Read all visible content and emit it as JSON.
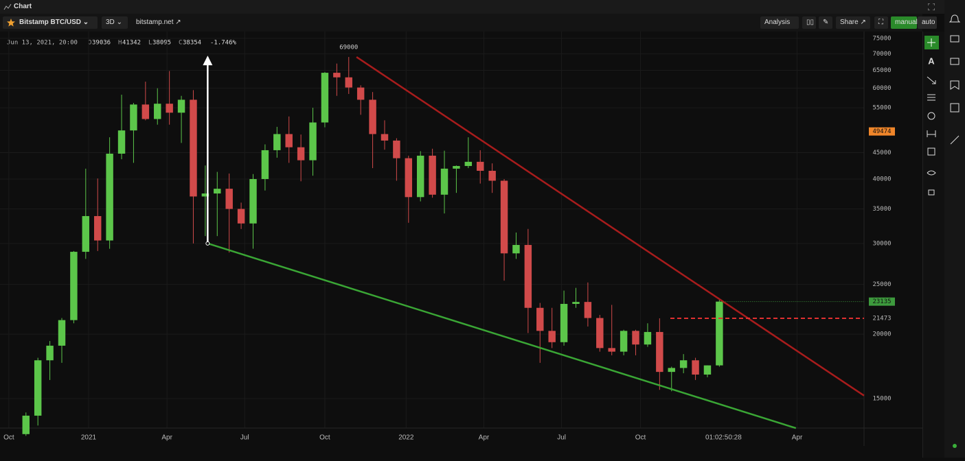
{
  "header": {
    "title": "Chart"
  },
  "toolbar": {
    "symbol": "Bitstamp BTC/USD",
    "interval": "3D",
    "source": "bitstamp.net",
    "analysis": "Analysis",
    "share": "Share",
    "modes": [
      "manual",
      "auto"
    ]
  },
  "legend": {
    "date": "Jun 13, 2021, 20:00",
    "fields": [
      {
        "label": "O",
        "value": 39036
      },
      {
        "label": "H",
        "value": 41342
      },
      {
        "label": "L",
        "value": 38095
      },
      {
        "label": "C",
        "value": 38354
      }
    ],
    "change": "-1.746%"
  },
  "chart_data": {
    "type": "candlestick",
    "up_color": "#5cc64a",
    "down_color": "#d14a4a",
    "open": [
      12800,
      13900,
      17800,
      19000,
      21300,
      28900,
      33900,
      30400,
      44800,
      49700,
      55800,
      52300,
      56000,
      53800,
      57000,
      37000,
      37500,
      38300,
      35000,
      32800,
      40000,
      45500,
      48900,
      46100,
      43500,
      51500,
      64300,
      63000,
      60200,
      57000,
      48900,
      47500,
      43900,
      36900,
      44400,
      37300,
      41900,
      42400,
      43200,
      41500,
      39700,
      28700,
      29800,
      22500,
      20300,
      19300,
      22900,
      23100,
      21500,
      18800,
      18500,
      20300,
      19100,
      20200,
      16900,
      17200,
      17800,
      16700,
      17400
    ],
    "high": [
      14100,
      18000,
      19400,
      21500,
      29000,
      41900,
      40100,
      48200,
      58300,
      56200,
      61800,
      60000,
      64800,
      58000,
      59500,
      42500,
      41300,
      41000,
      36000,
      40900,
      46700,
      50500,
      52900,
      48800,
      55000,
      64500,
      67000,
      69000,
      60800,
      59000,
      52000,
      48000,
      44400,
      45300,
      45800,
      45400,
      42500,
      48200,
      45500,
      42900,
      40000,
      31500,
      32000,
      23000,
      22500,
      24300,
      24600,
      25200,
      21800,
      22800,
      20400,
      20400,
      21000,
      21473,
      17300,
      18300,
      18000,
      17400,
      23300
    ],
    "low": [
      12700,
      13300,
      16300,
      17600,
      21000,
      28000,
      29000,
      29300,
      43700,
      43000,
      52000,
      51000,
      51000,
      47000,
      30000,
      31000,
      31000,
      28800,
      32000,
      29300,
      38000,
      44000,
      43000,
      39600,
      40600,
      50400,
      58000,
      58500,
      53300,
      42000,
      45600,
      39700,
      32900,
      36200,
      36800,
      34300,
      37600,
      42000,
      39200,
      37600,
      25400,
      28000,
      20100,
      17600,
      18800,
      19000,
      22500,
      20700,
      18500,
      18200,
      18200,
      18200,
      18900,
      15600,
      15500,
      16800,
      16300,
      16500,
      17300
    ],
    "close": [
      13900,
      17800,
      19000,
      21300,
      28900,
      33900,
      30400,
      44800,
      49700,
      55800,
      52300,
      56000,
      53800,
      57000,
      37000,
      37500,
      38300,
      35000,
      32800,
      40000,
      45500,
      48900,
      46100,
      43500,
      51500,
      64300,
      63000,
      60200,
      57000,
      48900,
      47500,
      43900,
      36900,
      44400,
      37300,
      41900,
      42400,
      43200,
      41500,
      39700,
      28700,
      29800,
      22500,
      20300,
      19300,
      22900,
      23100,
      21500,
      18800,
      18500,
      20300,
      19100,
      20200,
      16900,
      17200,
      17800,
      16700,
      17400,
      23135
    ],
    "log_scale": true,
    "grid": true,
    "ylim": [
      13150,
      77300
    ],
    "yticks": [
      15000,
      20000,
      25000,
      30000,
      35000,
      40000,
      45000,
      55000,
      60000,
      65000,
      70000,
      75000
    ],
    "xlim": [
      -2.17,
      70.1
    ],
    "xticks": [
      {
        "value": -1.43,
        "label": "Oct"
      },
      {
        "value": 5.24,
        "label": "2021"
      },
      {
        "value": 11.8,
        "label": "Apr"
      },
      {
        "value": 18.3,
        "label": "Jul"
      },
      {
        "value": 25.0,
        "label": "Oct"
      },
      {
        "value": 31.8,
        "label": "2022"
      },
      {
        "value": 38.3,
        "label": "Apr"
      },
      {
        "value": 44.8,
        "label": "Jul"
      },
      {
        "value": 51.4,
        "label": "Oct"
      },
      {
        "value": 64.5,
        "label": "Apr"
      }
    ],
    "countdown": {
      "label": "01:02:50:28"
    },
    "annotations": [
      {
        "text": "69000",
        "x": 27,
        "y": 69000
      }
    ],
    "price_tags": [
      {
        "value": 49474,
        "color": "#f0862a"
      },
      {
        "value": 23135,
        "color": "#3d9a3d",
        "line": "dotted",
        "from": 58
      },
      {
        "value": 21473,
        "color": "#e03030",
        "line": "dashed",
        "from": 53.9
      }
    ],
    "drawings": [
      {
        "color": "#a81c1c",
        "points": [
          [
            27.65,
            69000
          ],
          [
            70.1,
            15200
          ]
        ]
      },
      {
        "color": "#3aa635",
        "points": [
          [
            15.2,
            30000
          ],
          [
            64.4,
            13146
          ]
        ]
      },
      {
        "color": "#ffffff",
        "arrow": true,
        "points": [
          [
            15.2,
            30000
          ],
          [
            15.2,
            69000
          ]
        ]
      }
    ]
  }
}
